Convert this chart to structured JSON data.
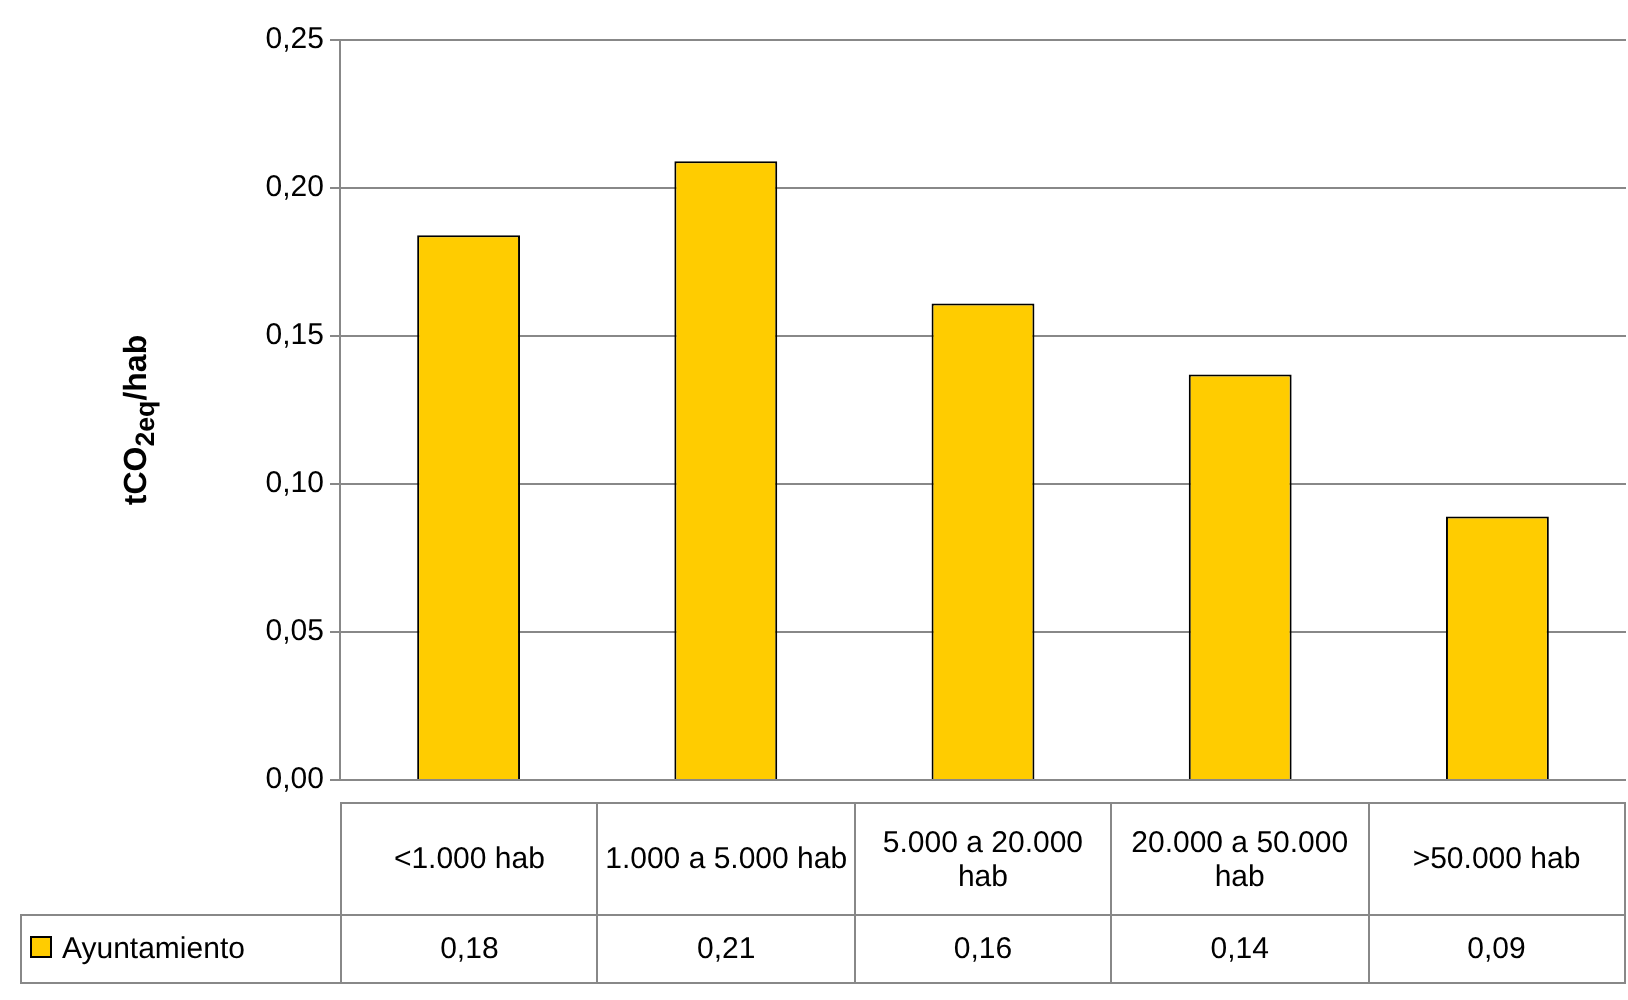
{
  "chart_data": {
    "type": "bar",
    "ylabel": "tCO$_{2eq}$/hab",
    "categories": [
      "<1.000 hab",
      "1.000 a 5.000 hab",
      "5.000 a 20.000 hab",
      "20.000 a 50.000 hab",
      ">50.000 hab"
    ],
    "series": [
      {
        "name": "Ayuntamiento",
        "color": "#ffcc00",
        "values": [
          0.184,
          0.209,
          0.161,
          0.137,
          0.089
        ],
        "value_labels": [
          "0,18",
          "0,21",
          "0,16",
          "0,14",
          "0,09"
        ]
      }
    ],
    "ylim": [
      0,
      0.25
    ],
    "yticks": [
      {
        "value": 0,
        "label": "0,00"
      },
      {
        "value": 0.05,
        "label": "0,05"
      },
      {
        "value": 0.1,
        "label": "0,10"
      },
      {
        "value": 0.15,
        "label": "0,15"
      },
      {
        "value": 0.2,
        "label": "0,20"
      },
      {
        "value": 0.25,
        "label": "0,25"
      }
    ],
    "grid": "y",
    "legend": "bottom left"
  }
}
